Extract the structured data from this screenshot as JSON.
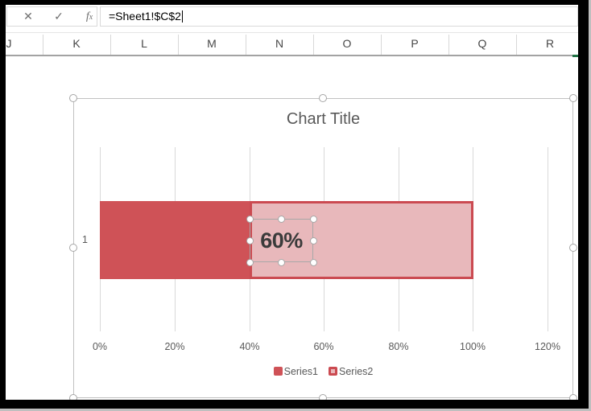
{
  "formula_bar": {
    "cancel_icon": "✕",
    "enter_icon": "✓",
    "function_icon_f": "f",
    "function_icon_x": "x",
    "formula": "=Sheet1!$C$2"
  },
  "column_headers": [
    "J",
    "K",
    "L",
    "M",
    "N",
    "O",
    "P",
    "Q",
    "R"
  ],
  "chart": {
    "title": "Chart Title",
    "category_label": "1",
    "data_label": "60%",
    "axis_ticks": [
      "0%",
      "20%",
      "40%",
      "60%",
      "80%",
      "100%",
      "120%"
    ],
    "legend": {
      "series1_label": "Series1",
      "series2_label": "Series2"
    }
  },
  "chart_data": {
    "type": "bar",
    "orientation": "horizontal",
    "stacked": true,
    "title": "Chart Title",
    "categories": [
      "1"
    ],
    "series": [
      {
        "name": "Series1",
        "values": [
          0.4
        ]
      },
      {
        "name": "Series2",
        "values": [
          0.6
        ]
      }
    ],
    "data_labels": [
      {
        "series": "Series2",
        "text": "60%",
        "selected": true,
        "linked_formula": "=Sheet1!$C$2"
      }
    ],
    "xlim": [
      0,
      1.2
    ],
    "x_tick_step": 0.2,
    "x_tick_format": "percent",
    "grid": true,
    "legend_position": "bottom"
  },
  "colors": {
    "series1_fill": "#cf5257",
    "series2_fill": "#e8b8bb",
    "series2_border": "#cb4a51",
    "text_gray": "#595959",
    "selection_gray": "#a6a6a6",
    "gridline": "#d9d9d9",
    "header_green_accent": "#217346"
  }
}
